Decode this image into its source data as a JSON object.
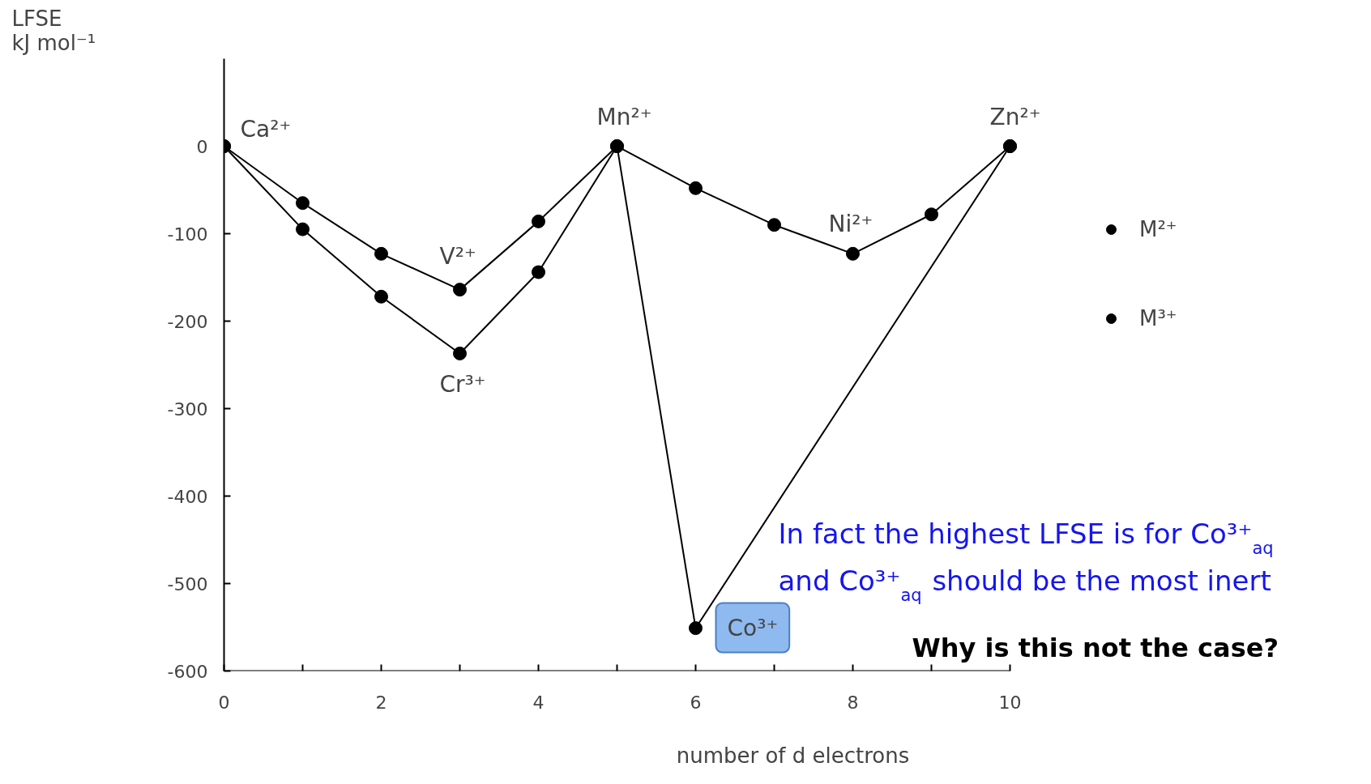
{
  "chart_data": {
    "type": "line",
    "xlabel": "number of d electrons",
    "ylabel": "LFSE\nkJ mol⁻¹",
    "xlim": [
      0,
      10
    ],
    "ylim": [
      -600,
      100
    ],
    "xticks": [
      0,
      {
        "value": 1,
        "label": null
      },
      2,
      {
        "value": 3,
        "label": null
      },
      4,
      {
        "value": 5,
        "label": null
      },
      6,
      {
        "value": 7,
        "label": null
      },
      8,
      {
        "value": 9,
        "label": null
      },
      10
    ],
    "yticks": [
      0,
      -100,
      -200,
      -300,
      -400,
      -500,
      -600
    ],
    "grid": false,
    "legend": "right",
    "marker": "circle",
    "line_style": "solid",
    "series": [
      {
        "name": "M²⁺",
        "color": "#000000",
        "x": [
          0,
          1,
          2,
          3,
          4,
          5,
          6,
          7,
          8,
          9,
          10
        ],
        "values": [
          0,
          -65,
          -123,
          -164,
          -86,
          0,
          -48,
          -90,
          -123,
          -78,
          0
        ]
      },
      {
        "name": "M³⁺",
        "color": "#000000",
        "x": [
          0,
          1,
          2,
          3,
          4,
          5,
          6,
          10
        ],
        "values": [
          0,
          -95,
          -172,
          -237,
          -144,
          0,
          -551,
          0
        ]
      }
    ],
    "annotations": [
      {
        "text": "Ca²⁺",
        "x": 0,
        "y": 0
      },
      {
        "text": "V²⁺",
        "x": 3,
        "y": -164
      },
      {
        "text": "Cr³⁺",
        "x": 3,
        "y": -237
      },
      {
        "text": "Mn²⁺",
        "x": 5,
        "y": 0
      },
      {
        "text": "Ni²⁺",
        "x": 8,
        "y": -123
      },
      {
        "text": "Zn²⁺",
        "x": 10,
        "y": 0
      },
      {
        "text": "Co³⁺",
        "x": 6,
        "y": -551
      },
      "In fact the highest LFSE is for Co³⁺$_{aq}$",
      "and Co³⁺$_{aq}$ should be the most inert",
      "Why is this not the case?"
    ]
  }
}
